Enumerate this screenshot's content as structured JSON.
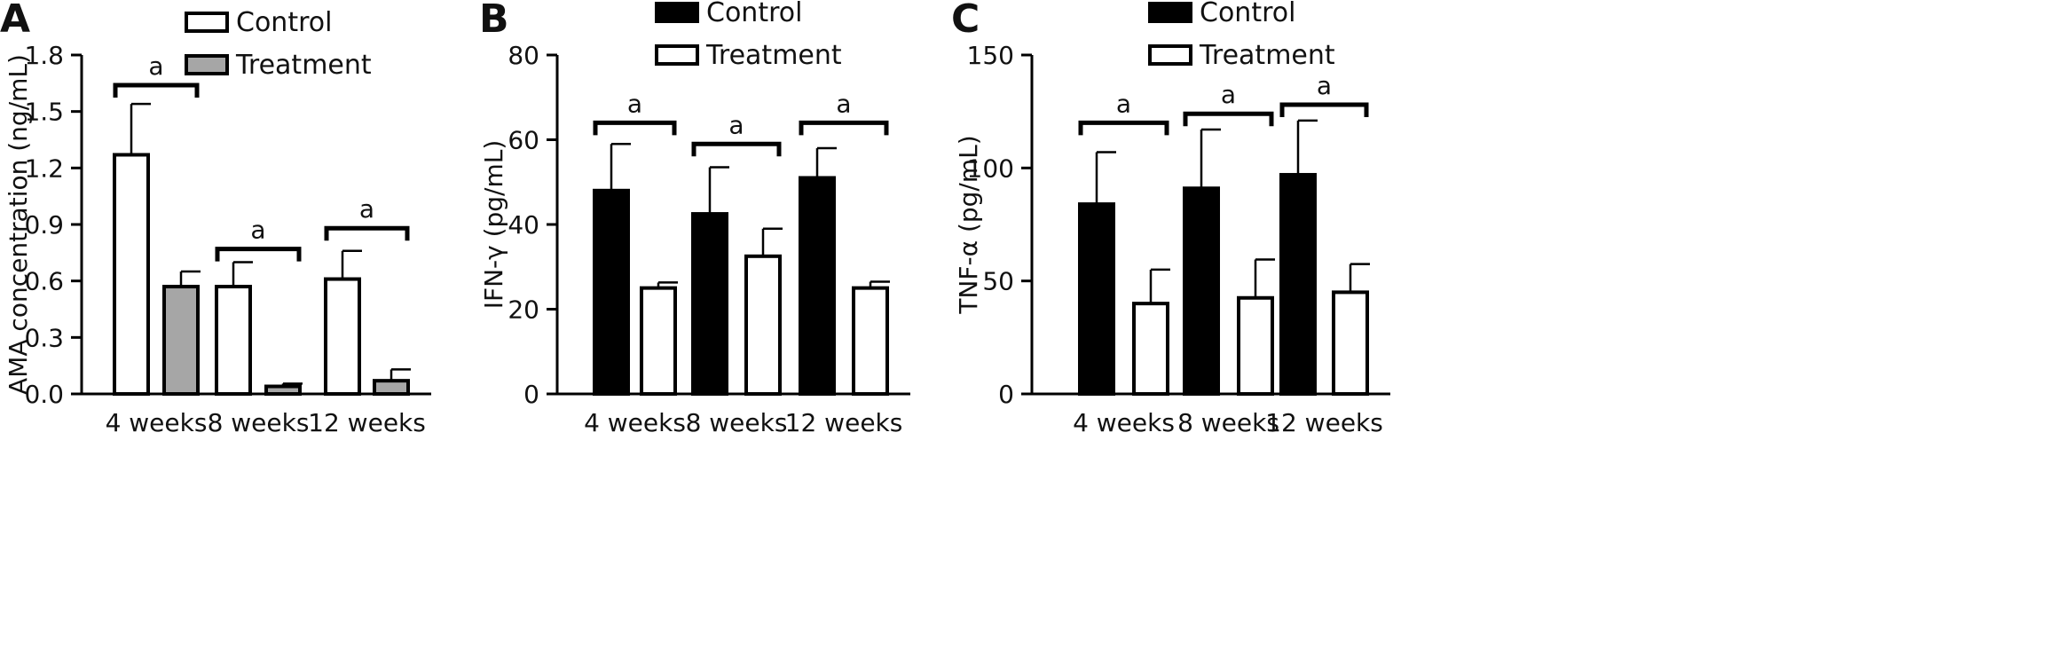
{
  "figure": {
    "panels": [
      {
        "letter": "A",
        "ylabel": "AMA concentration (ng/mL)",
        "ytick_labels": [
          "0.0",
          "0.3",
          "0.6",
          "0.9",
          "1.2",
          "1.5",
          "1.8"
        ],
        "series_names": [
          "Control",
          "Treatment"
        ],
        "significance_label": "a"
      },
      {
        "letter": "B",
        "ylabel": "IFN-γ (pg/mL)",
        "ytick_labels": [
          "0",
          "20",
          "40",
          "60",
          "80"
        ],
        "series_names": [
          "Control",
          "Treatment"
        ],
        "significance_label": "a"
      },
      {
        "letter": "C",
        "ylabel": "TNF-α (pg/mL)",
        "ytick_labels": [
          "0",
          "50",
          "100",
          "150"
        ],
        "series_names": [
          "Control",
          "Treatment"
        ],
        "significance_label": "a"
      }
    ]
  },
  "chart_data": [
    {
      "type": "bar",
      "title": "",
      "xlabel": "",
      "ylabel": "AMA concentration (ng/mL)",
      "categories": [
        "4 weeks",
        "8 weeks",
        "12 weeks"
      ],
      "ylim": [
        0,
        1.8
      ],
      "yticks": [
        0,
        0.3,
        0.6,
        0.9,
        1.2,
        1.5,
        1.8
      ],
      "legend_position": "top-center",
      "series": [
        {
          "name": "Control",
          "values": [
            1.27,
            0.57,
            0.61
          ],
          "errors": [
            0.27,
            0.13,
            0.15
          ],
          "fill": "#ffffff"
        },
        {
          "name": "Treatment",
          "values": [
            0.57,
            0.04,
            0.07
          ],
          "errors": [
            0.08,
            0.015,
            0.06
          ],
          "fill": "#a6a6a6"
        }
      ],
      "significance": [
        {
          "category_index": 0,
          "label": "a",
          "level": 1.64
        },
        {
          "category_index": 1,
          "label": "a",
          "level": 0.77
        },
        {
          "category_index": 2,
          "label": "a",
          "level": 0.88
        }
      ]
    },
    {
      "type": "bar",
      "title": "",
      "xlabel": "",
      "ylabel": "IFN-γ (pg/mL)",
      "categories": [
        "4 weeks",
        "8 weeks",
        "12 weeks"
      ],
      "ylim": [
        0,
        80
      ],
      "yticks": [
        0,
        20,
        40,
        60,
        80
      ],
      "legend_position": "top-center",
      "series": [
        {
          "name": "Control",
          "values": [
            48,
            42.5,
            51
          ],
          "errors": [
            11,
            11,
            7
          ],
          "fill": "#000000"
        },
        {
          "name": "Treatment",
          "values": [
            25,
            32.5,
            25
          ],
          "errors": [
            1.3,
            6.5,
            1.5
          ],
          "fill": "#ffffff"
        }
      ],
      "significance": [
        {
          "category_index": 0,
          "label": "a",
          "level": 64
        },
        {
          "category_index": 1,
          "label": "a",
          "level": 59
        },
        {
          "category_index": 2,
          "label": "a",
          "level": 64
        }
      ]
    },
    {
      "type": "bar",
      "title": "",
      "xlabel": "",
      "ylabel": "TNF-α (pg/mL)",
      "categories": [
        "4 weeks",
        "8 weeks",
        "12 weeks"
      ],
      "ylim": [
        0,
        150
      ],
      "yticks": [
        0,
        50,
        100,
        150
      ],
      "legend_position": "top-center",
      "series": [
        {
          "name": "Control",
          "values": [
            84,
            91,
            97
          ],
          "errors": [
            23,
            26,
            24
          ],
          "fill": "#000000"
        },
        {
          "name": "Treatment",
          "values": [
            40,
            42.5,
            45
          ],
          "errors": [
            15,
            17,
            12.5
          ],
          "fill": "#ffffff"
        }
      ],
      "significance": [
        {
          "category_index": 0,
          "label": "a",
          "level": 120
        },
        {
          "category_index": 1,
          "label": "a",
          "level": 124
        },
        {
          "category_index": 2,
          "label": "a",
          "level": 128
        }
      ]
    }
  ]
}
